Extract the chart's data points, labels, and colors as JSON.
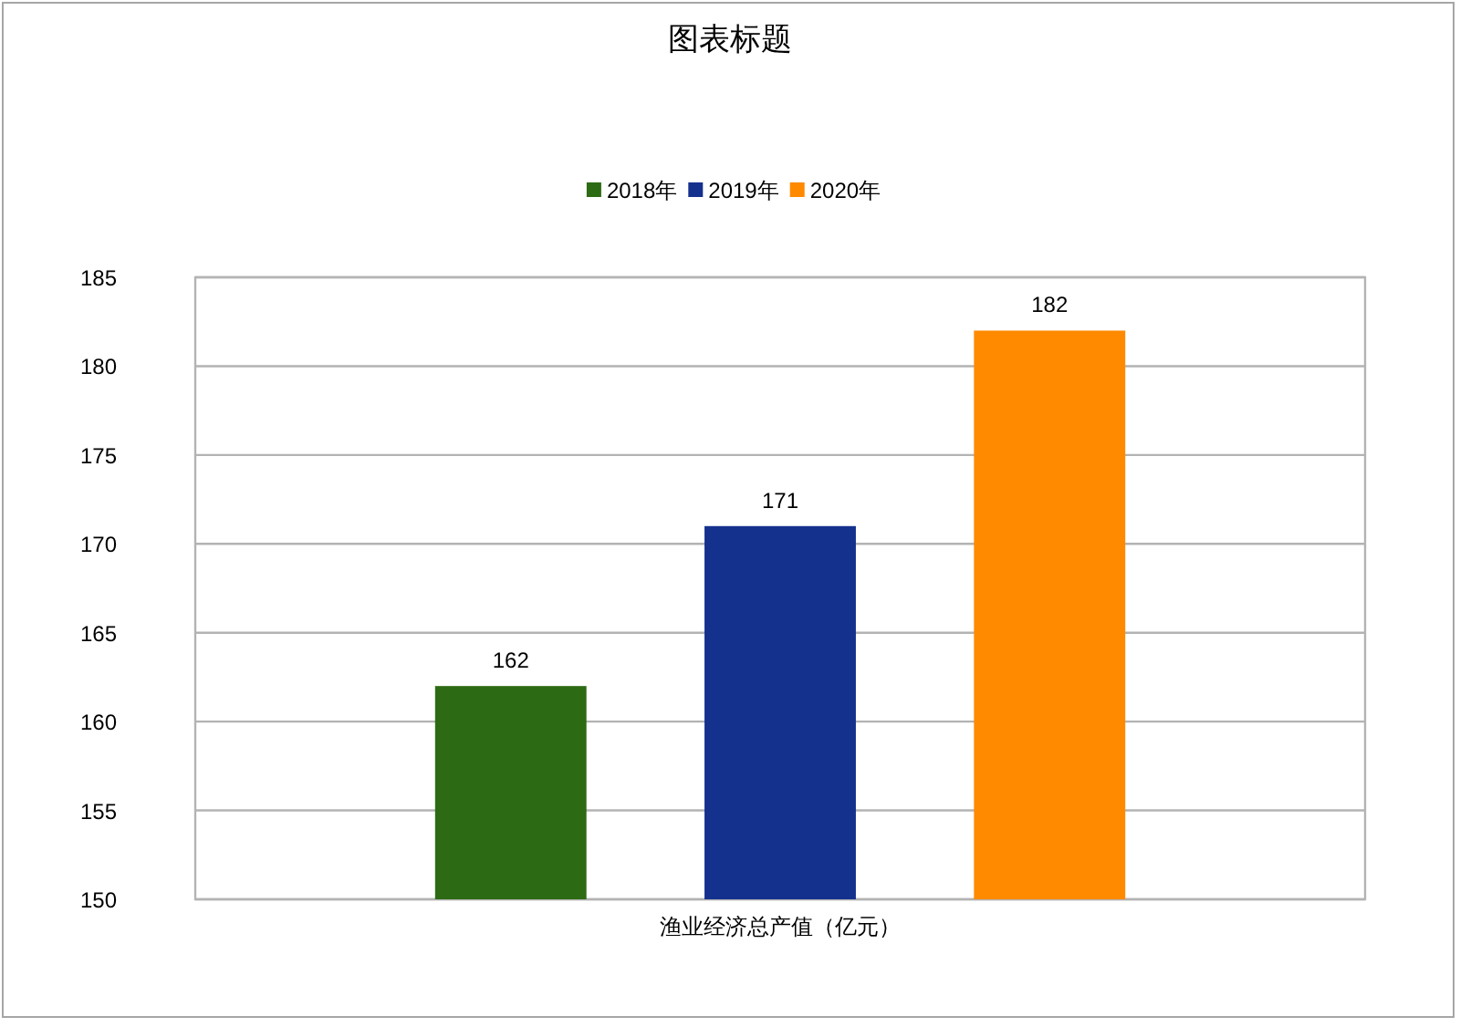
{
  "chart_data": {
    "type": "bar",
    "title": "图表标题",
    "categories": [
      "渔业经济总产值（亿元）"
    ],
    "series": [
      {
        "name": "2018年",
        "color": "#2d6a14",
        "values": [
          162
        ]
      },
      {
        "name": "2019年",
        "color": "#15318e",
        "values": [
          171
        ]
      },
      {
        "name": "2020年",
        "color": "#ff8a00",
        "values": [
          182
        ]
      }
    ],
    "ylim": [
      150,
      185
    ],
    "yticks": [
      150,
      155,
      160,
      165,
      170,
      175,
      180,
      185
    ],
    "grid": "y",
    "legend": "top",
    "data_labels": true
  }
}
